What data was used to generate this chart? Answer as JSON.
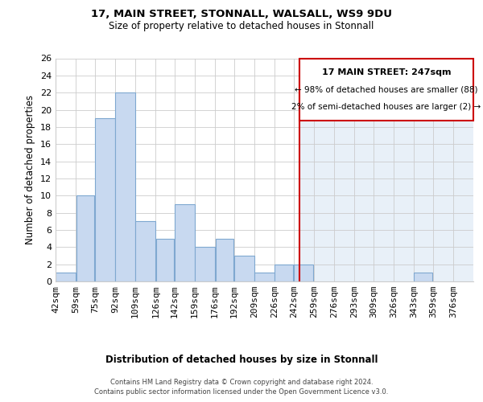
{
  "title": "17, MAIN STREET, STONNALL, WALSALL, WS9 9DU",
  "subtitle": "Size of property relative to detached houses in Stonnall",
  "xlabel": "Distribution of detached houses by size in Stonnall",
  "ylabel": "Number of detached properties",
  "bar_left_edges": [
    42,
    59,
    75,
    92,
    109,
    126,
    142,
    159,
    176,
    192,
    209,
    226,
    242,
    259,
    276,
    293,
    309,
    326,
    343,
    359
  ],
  "bar_widths": [
    17,
    16,
    17,
    17,
    17,
    16,
    17,
    17,
    16,
    17,
    17,
    16,
    17,
    17,
    17,
    16,
    17,
    17,
    16,
    17
  ],
  "bar_heights": [
    1,
    10,
    19,
    22,
    7,
    5,
    9,
    4,
    5,
    3,
    1,
    2,
    2,
    0,
    0,
    0,
    0,
    0,
    1,
    0
  ],
  "tick_labels": [
    "42sqm",
    "59sqm",
    "75sqm",
    "92sqm",
    "109sqm",
    "126sqm",
    "142sqm",
    "159sqm",
    "176sqm",
    "192sqm",
    "209sqm",
    "226sqm",
    "242sqm",
    "259sqm",
    "276sqm",
    "293sqm",
    "309sqm",
    "326sqm",
    "343sqm",
    "359sqm",
    "376sqm"
  ],
  "tick_positions": [
    42,
    59,
    75,
    92,
    109,
    126,
    142,
    159,
    176,
    192,
    209,
    226,
    242,
    259,
    276,
    293,
    309,
    326,
    343,
    359,
    376
  ],
  "bar_color": "#c8d9f0",
  "bar_edge_color": "#7fa8d0",
  "grid_color": "#cccccc",
  "background_color": "#ffffff",
  "right_bg_color": "#e8f0f8",
  "vline_x": 247,
  "vline_color": "#cc0000",
  "ylim": [
    0,
    26
  ],
  "yticks": [
    0,
    2,
    4,
    6,
    8,
    10,
    12,
    14,
    16,
    18,
    20,
    22,
    24,
    26
  ],
  "annotation_title": "17 MAIN STREET: 247sqm",
  "annotation_line1": "← 98% of detached houses are smaller (88)",
  "annotation_line2": "2% of semi-detached houses are larger (2) →",
  "footer_line1": "Contains HM Land Registry data © Crown copyright and database right 2024.",
  "footer_line2": "Contains public sector information licensed under the Open Government Licence v3.0."
}
